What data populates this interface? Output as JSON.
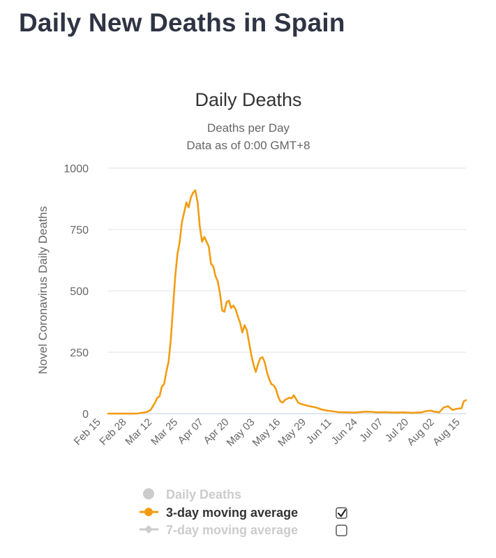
{
  "page": {
    "title": "Daily New Deaths in Spain"
  },
  "chart_data": {
    "type": "line",
    "title": "Daily Deaths",
    "subtitle_line1": "Deaths per Day",
    "subtitle_line2": "Data as of 0:00 GMT+8",
    "ylabel": "Novel Coronavirus Daily Deaths",
    "xlabel": "",
    "ylim": [
      0,
      1000
    ],
    "yticks": [
      0,
      250,
      500,
      750,
      1000
    ],
    "x_tick_labels": [
      "Feb 15",
      "Feb 28",
      "Mar 12",
      "Mar 25",
      "Apr 07",
      "Apr 20",
      "May 03",
      "May 16",
      "May 29",
      "Jun 11",
      "Jun 24",
      "Jul 07",
      "Jul 20",
      "Aug 02",
      "Aug 15"
    ],
    "series": [
      {
        "name": "3-day moving average",
        "color": "#f39c12",
        "visible": true,
        "points": [
          [
            0,
            0
          ],
          [
            13,
            0
          ],
          [
            15,
            3
          ],
          [
            17,
            6
          ],
          [
            18,
            10
          ],
          [
            19,
            15
          ],
          [
            20,
            30
          ],
          [
            21,
            45
          ],
          [
            22,
            65
          ],
          [
            23,
            70
          ],
          [
            24,
            110
          ],
          [
            25,
            120
          ],
          [
            26,
            170
          ],
          [
            27,
            210
          ],
          [
            28,
            300
          ],
          [
            29,
            430
          ],
          [
            30,
            560
          ],
          [
            31,
            650
          ],
          [
            32,
            700
          ],
          [
            33,
            780
          ],
          [
            34,
            820
          ],
          [
            35,
            860
          ],
          [
            36,
            840
          ],
          [
            37,
            880
          ],
          [
            38,
            900
          ],
          [
            39,
            910
          ],
          [
            40,
            860
          ],
          [
            41,
            760
          ],
          [
            42,
            700
          ],
          [
            43,
            720
          ],
          [
            44,
            700
          ],
          [
            45,
            680
          ],
          [
            46,
            610
          ],
          [
            47,
            600
          ],
          [
            48,
            560
          ],
          [
            49,
            540
          ],
          [
            50,
            490
          ],
          [
            51,
            420
          ],
          [
            52,
            415
          ],
          [
            53,
            455
          ],
          [
            54,
            460
          ],
          [
            55,
            430
          ],
          [
            56,
            440
          ],
          [
            57,
            425
          ],
          [
            58,
            395
          ],
          [
            59,
            370
          ],
          [
            60,
            330
          ],
          [
            61,
            360
          ],
          [
            62,
            340
          ],
          [
            63,
            290
          ],
          [
            64,
            240
          ],
          [
            65,
            200
          ],
          [
            66,
            170
          ],
          [
            67,
            200
          ],
          [
            68,
            225
          ],
          [
            69,
            230
          ],
          [
            70,
            210
          ],
          [
            71,
            170
          ],
          [
            72,
            140
          ],
          [
            73,
            120
          ],
          [
            74,
            115
          ],
          [
            75,
            100
          ],
          [
            76,
            70
          ],
          [
            77,
            50
          ],
          [
            78,
            45
          ],
          [
            79,
            55
          ],
          [
            80,
            60
          ],
          [
            81,
            65
          ],
          [
            82,
            62
          ],
          [
            83,
            75
          ],
          [
            84,
            60
          ],
          [
            85,
            45
          ],
          [
            86,
            40
          ],
          [
            88,
            35
          ],
          [
            90,
            30
          ],
          [
            93,
            25
          ],
          [
            95,
            18
          ],
          [
            98,
            12
          ],
          [
            100,
            10
          ],
          [
            103,
            6
          ],
          [
            106,
            5
          ],
          [
            110,
            4
          ],
          [
            115,
            8
          ],
          [
            118,
            7
          ],
          [
            120,
            5
          ],
          [
            124,
            6
          ],
          [
            128,
            4
          ],
          [
            132,
            5
          ],
          [
            136,
            3
          ],
          [
            140,
            5
          ],
          [
            142,
            10
          ],
          [
            144,
            12
          ],
          [
            146,
            8
          ],
          [
            148,
            5
          ],
          [
            150,
            25
          ],
          [
            152,
            30
          ],
          [
            154,
            15
          ],
          [
            156,
            20
          ],
          [
            158,
            22
          ],
          [
            159,
            50
          ],
          [
            160,
            55
          ]
        ]
      }
    ],
    "legend": [
      {
        "name": "Daily Deaths",
        "color": "#cccccc",
        "active": false,
        "checkbox": false
      },
      {
        "name": "3-day moving average",
        "color": "#f39c12",
        "active": true,
        "checkbox": true,
        "checked": true
      },
      {
        "name": "7-day moving average",
        "color": "#cccccc",
        "active": false,
        "checkbox": true,
        "checked": false
      }
    ]
  }
}
